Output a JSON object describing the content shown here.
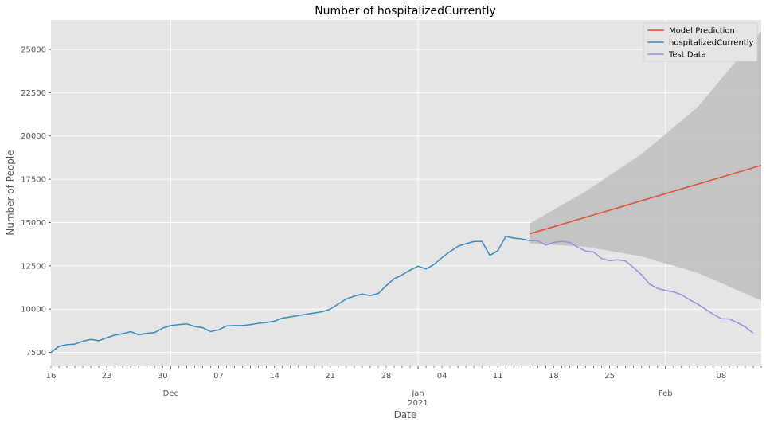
{
  "chart_data": {
    "type": "line",
    "title": "Number of hospitalizedCurrently",
    "xlabel": "Date",
    "ylabel": "Number of People",
    "xlim": [
      "2020-11-16",
      "2021-02-13"
    ],
    "ylim": [
      6700,
      26700
    ],
    "grid": true,
    "legend_position": "top-right",
    "yticks": [
      {
        "value": 7500,
        "label": "7500"
      },
      {
        "value": 10000,
        "label": "10000"
      },
      {
        "value": 12500,
        "label": "12500"
      },
      {
        "value": 15000,
        "label": "15000"
      },
      {
        "value": 17500,
        "label": "17500"
      },
      {
        "value": 20000,
        "label": "20000"
      },
      {
        "value": 22500,
        "label": "22500"
      },
      {
        "value": 25000,
        "label": "25000"
      }
    ],
    "xticks_major": [
      {
        "date": "2020-12-01",
        "label": "Dec",
        "sublabel": ""
      },
      {
        "date": "2021-01-01",
        "label": "Jan",
        "sublabel": "2021"
      },
      {
        "date": "2021-02-01",
        "label": "Feb",
        "sublabel": ""
      }
    ],
    "xticks_minor": [
      {
        "date": "2020-11-16",
        "label": "16"
      },
      {
        "date": "2020-11-23",
        "label": "23"
      },
      {
        "date": "2020-11-30",
        "label": "30"
      },
      {
        "date": "2020-12-07",
        "label": "07"
      },
      {
        "date": "2020-12-14",
        "label": "14"
      },
      {
        "date": "2020-12-21",
        "label": "21"
      },
      {
        "date": "2020-12-28",
        "label": "28"
      },
      {
        "date": "2021-01-04",
        "label": "04"
      },
      {
        "date": "2021-01-11",
        "label": "11"
      },
      {
        "date": "2021-01-18",
        "label": "18"
      },
      {
        "date": "2021-01-25",
        "label": "25"
      },
      {
        "date": "2021-02-08",
        "label": "08"
      }
    ],
    "series": [
      {
        "name": "Model Prediction",
        "color": "#e24a33",
        "x": [
          "2021-01-15",
          "2021-02-13"
        ],
        "y": [
          14350,
          18300
        ]
      },
      {
        "name": "hospitalizedCurrently",
        "color": "#348abd",
        "x": [
          "2020-11-16",
          "2020-11-17",
          "2020-11-18",
          "2020-11-19",
          "2020-11-20",
          "2020-11-21",
          "2020-11-22",
          "2020-11-23",
          "2020-11-24",
          "2020-11-25",
          "2020-11-26",
          "2020-11-27",
          "2020-11-28",
          "2020-11-29",
          "2020-11-30",
          "2020-12-01",
          "2020-12-02",
          "2020-12-03",
          "2020-12-04",
          "2020-12-05",
          "2020-12-06",
          "2020-12-07",
          "2020-12-08",
          "2020-12-09",
          "2020-12-10",
          "2020-12-11",
          "2020-12-12",
          "2020-12-13",
          "2020-12-14",
          "2020-12-15",
          "2020-12-16",
          "2020-12-17",
          "2020-12-18",
          "2020-12-19",
          "2020-12-20",
          "2020-12-21",
          "2020-12-22",
          "2020-12-23",
          "2020-12-24",
          "2020-12-25",
          "2020-12-26",
          "2020-12-27",
          "2020-12-28",
          "2020-12-29",
          "2020-12-30",
          "2020-12-31",
          "2021-01-01",
          "2021-01-02",
          "2021-01-03",
          "2021-01-04",
          "2021-01-05",
          "2021-01-06",
          "2021-01-07",
          "2021-01-08",
          "2021-01-09",
          "2021-01-10",
          "2021-01-11",
          "2021-01-12",
          "2021-01-13",
          "2021-01-14",
          "2021-01-15"
        ],
        "y": [
          7500,
          7850,
          7950,
          7980,
          8150,
          8250,
          8180,
          8350,
          8500,
          8580,
          8700,
          8520,
          8600,
          8650,
          8900,
          9050,
          9100,
          9150,
          9000,
          8930,
          8700,
          8800,
          9030,
          9050,
          9050,
          9100,
          9180,
          9230,
          9300,
          9480,
          9550,
          9630,
          9700,
          9780,
          9850,
          10000,
          10300,
          10580,
          10750,
          10870,
          10780,
          10900,
          11350,
          11750,
          11980,
          12250,
          12480,
          12320,
          12580,
          12980,
          13320,
          13630,
          13780,
          13900,
          13920,
          13100,
          13380,
          14200,
          14100,
          14050,
          13950
        ]
      },
      {
        "name": "Test Data",
        "color": "#988ed5",
        "x": [
          "2021-01-15",
          "2021-01-16",
          "2021-01-17",
          "2021-01-18",
          "2021-01-19",
          "2021-01-20",
          "2021-01-21",
          "2021-01-22",
          "2021-01-23",
          "2021-01-24",
          "2021-01-25",
          "2021-01-26",
          "2021-01-27",
          "2021-01-28",
          "2021-01-29",
          "2021-01-30",
          "2021-01-31",
          "2021-02-01",
          "2021-02-02",
          "2021-02-03",
          "2021-02-04",
          "2021-02-05",
          "2021-02-06",
          "2021-02-07",
          "2021-02-08",
          "2021-02-09",
          "2021-02-10",
          "2021-02-11",
          "2021-02-12"
        ],
        "y": [
          13950,
          13950,
          13700,
          13850,
          13920,
          13850,
          13580,
          13350,
          13300,
          12920,
          12800,
          12850,
          12780,
          12400,
          11980,
          11450,
          11200,
          11080,
          11000,
          10830,
          10550,
          10300,
          10000,
          9700,
          9450,
          9430,
          9220,
          8980,
          8600
        ]
      }
    ],
    "confidence_band": {
      "color": "#bebebe",
      "x": [
        "2021-01-15",
        "2021-01-22",
        "2021-01-29",
        "2021-02-05",
        "2021-02-13"
      ],
      "upper": [
        14950,
        16800,
        18950,
        21650,
        26050
      ],
      "lower": [
        13800,
        13600,
        13050,
        12100,
        10500
      ]
    }
  }
}
